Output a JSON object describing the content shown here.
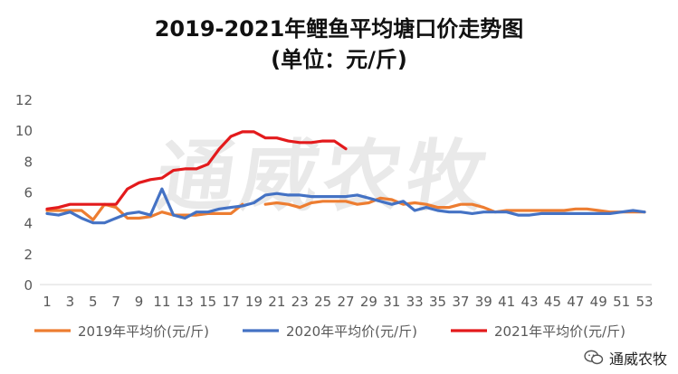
{
  "title": {
    "line1": "2019-2021年鲤鱼平均塘口价走势图",
    "line2": "(单位：元/斤)"
  },
  "watermark": {
    "text": "通威农牧"
  },
  "badge": {
    "icon": "wechat-icon",
    "text": "通威农牧"
  },
  "colors": {
    "s2019": "#ED7D31",
    "s2020": "#4472C4",
    "s2021": "#E31A1C",
    "grid": "#D9D9D9",
    "axis_text": "#595959"
  },
  "chart_data": {
    "type": "line",
    "title": "2019-2021年鲤鱼平均塘口价走势图",
    "subtitle": "(单位：元/斤)",
    "xlabel": "",
    "ylabel": "",
    "ylim": [
      0,
      12
    ],
    "yticks": [
      0,
      2,
      4,
      6,
      8,
      10,
      12
    ],
    "xlim": [
      1,
      53
    ],
    "xticks": [
      1,
      3,
      5,
      7,
      9,
      11,
      13,
      15,
      17,
      19,
      21,
      23,
      25,
      27,
      29,
      31,
      33,
      35,
      37,
      39,
      41,
      43,
      45,
      47,
      49,
      51,
      53
    ],
    "grid": false,
    "legend": "bottom",
    "series": [
      {
        "name": "2019年平均价(元/斤)",
        "color_key": "s2019",
        "segments": [
          {
            "x": [
              1,
              2,
              3,
              4,
              5,
              6,
              7,
              8,
              9,
              10,
              11,
              12,
              13,
              14,
              15,
              16,
              17,
              18
            ],
            "y": [
              4.8,
              4.8,
              4.8,
              4.8,
              4.2,
              5.2,
              5.0,
              4.3,
              4.3,
              4.4,
              4.7,
              4.5,
              4.5,
              4.5,
              4.6,
              4.6,
              4.6,
              5.2
            ]
          },
          {
            "x": [
              20,
              21,
              22,
              23,
              24,
              25,
              26,
              27,
              28,
              29,
              30,
              31,
              32,
              33,
              34,
              35,
              36,
              37,
              38,
              39,
              40,
              41,
              42,
              43,
              44,
              45,
              46,
              47,
              48,
              49,
              50,
              51,
              52,
              53
            ],
            "y": [
              5.2,
              5.3,
              5.2,
              5.0,
              5.3,
              5.4,
              5.4,
              5.4,
              5.2,
              5.3,
              5.6,
              5.5,
              5.2,
              5.3,
              5.2,
              5.0,
              5.0,
              5.2,
              5.2,
              5.0,
              4.7,
              4.8,
              4.8,
              4.8,
              4.8,
              4.8,
              4.8,
              4.9,
              4.9,
              4.8,
              4.7,
              4.7,
              4.7,
              4.7
            ]
          }
        ]
      },
      {
        "name": "2020年平均价(元/斤)",
        "color_key": "s2020",
        "segments": [
          {
            "x": [
              1,
              2,
              3,
              4,
              5,
              6,
              7,
              8,
              9,
              10,
              11,
              12,
              13,
              14,
              15,
              16,
              17,
              18,
              19,
              20,
              21,
              22,
              23,
              24,
              25,
              26,
              27,
              28,
              29,
              30,
              31,
              32,
              33,
              34,
              35,
              36,
              37,
              38,
              39,
              40,
              41,
              42,
              43,
              44,
              45,
              46,
              47,
              48,
              49,
              50,
              51,
              52,
              53
            ],
            "y": [
              4.6,
              4.5,
              4.7,
              4.3,
              4.0,
              4.0,
              4.3,
              4.6,
              4.7,
              4.5,
              6.2,
              4.5,
              4.3,
              4.7,
              4.7,
              4.9,
              5.0,
              5.1,
              5.3,
              5.8,
              5.9,
              5.8,
              5.8,
              5.7,
              5.7,
              5.7,
              5.7,
              5.8,
              5.6,
              5.4,
              5.2,
              5.4,
              4.8,
              5.0,
              4.8,
              4.7,
              4.7,
              4.6,
              4.7,
              4.7,
              4.7,
              4.5,
              4.5,
              4.6,
              4.6,
              4.6,
              4.6,
              4.6,
              4.6,
              4.6,
              4.7,
              4.8,
              4.7
            ]
          }
        ]
      },
      {
        "name": "2021年平均价(元/斤)",
        "color_key": "s2021",
        "segments": [
          {
            "x": [
              1,
              2,
              3,
              4,
              5,
              6,
              7,
              8,
              9,
              10,
              11,
              12,
              13,
              14,
              15,
              16,
              17,
              18,
              19,
              20,
              21,
              22,
              23,
              24,
              25,
              26,
              27
            ],
            "y": [
              4.9,
              5.0,
              5.2,
              5.2,
              5.2,
              5.2,
              5.2,
              6.2,
              6.6,
              6.8,
              6.9,
              7.4,
              7.5,
              7.5,
              7.8,
              8.8,
              9.6,
              9.9,
              9.9,
              9.5,
              9.5,
              9.3,
              9.2,
              9.2,
              9.3,
              9.3,
              8.8
            ]
          }
        ]
      }
    ]
  }
}
